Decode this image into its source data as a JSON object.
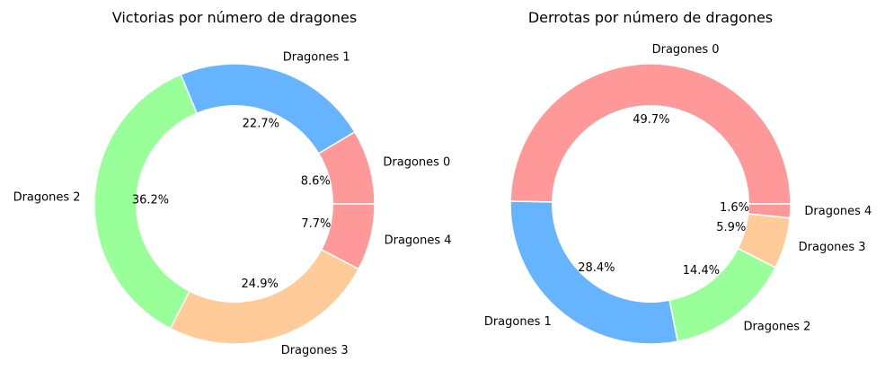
{
  "chart_data": [
    {
      "type": "pie",
      "title": "Victorias por número de dragones",
      "categories": [
        "Dragones 0",
        "Dragones 1",
        "Dragones 2",
        "Dragones 3",
        "Dragones 4"
      ],
      "values": [
        8.6,
        22.7,
        36.2,
        24.9,
        7.7
      ],
      "value_labels": [
        "8.6%",
        "22.7%",
        "36.2%",
        "24.9%",
        "7.7%"
      ],
      "colors": [
        "#ff9999",
        "#66b3ff",
        "#99ff99",
        "#ffcc99",
        "#ff9999"
      ],
      "donut": true,
      "legend": "none"
    },
    {
      "type": "pie",
      "title": "Derrotas por número de dragones",
      "categories": [
        "Dragones 0",
        "Dragones 1",
        "Dragones 2",
        "Dragones 3",
        "Dragones 4"
      ],
      "values": [
        49.7,
        28.4,
        14.4,
        5.9,
        1.6
      ],
      "value_labels": [
        "49.7%",
        "28.4%",
        "14.4%",
        "5.9%",
        "1.6%"
      ],
      "colors": [
        "#ff9999",
        "#66b3ff",
        "#99ff99",
        "#ffcc99",
        "#ff9999"
      ],
      "donut": true,
      "legend": "none"
    }
  ]
}
